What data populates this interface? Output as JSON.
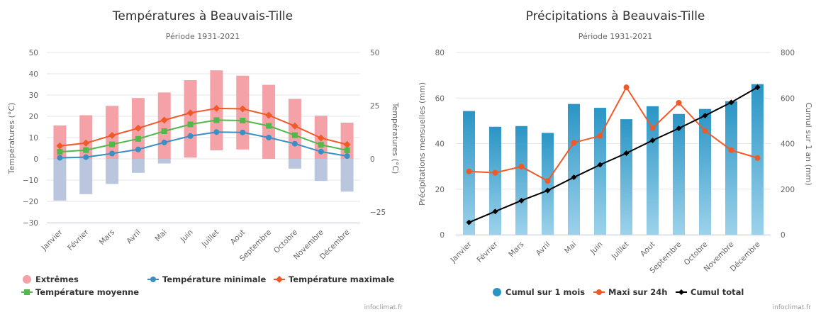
{
  "months": [
    "Janvier",
    "Février",
    "Mars",
    "Avril",
    "Mai",
    "Juin",
    "Juillet",
    "Aout",
    "Septembre",
    "Octobre",
    "Novembre",
    "Décembre"
  ],
  "credit": "infoclimat.fr",
  "colors": {
    "extremes_fill": "#f4a2a8",
    "extremes_low_fill": "#b9c6dd",
    "tmin": "#3a8fc3",
    "tmoy": "#52b84a",
    "tmax": "#f05a28",
    "precip_top": "#2a95c5",
    "precip_bottom": "#9dd2ea",
    "maxi24": "#f05a28",
    "cumul": "#000000"
  },
  "chart_data": [
    {
      "type": "line",
      "title": "Températures à Beauvais-Tille",
      "subtitle": "Période 1931-2021",
      "ylabel": "Températures (°C)",
      "ylabel_right": "Températures (°C)",
      "ylim": [
        -30,
        50
      ],
      "yticks": [
        "50",
        "40",
        "30",
        "20",
        "10",
        "0",
        "−10",
        "−20",
        "−30"
      ],
      "yticks_right": [
        "50",
        "25",
        "0",
        "−25"
      ],
      "categories": [
        "Janvier",
        "Février",
        "Mars",
        "Avril",
        "Mai",
        "Juin",
        "Juillet",
        "Aout",
        "Septembre",
        "Octobre",
        "Novembre",
        "Décembre"
      ],
      "extremes": {
        "name": "Extrêmes",
        "high": [
          15.7,
          20.5,
          24.9,
          28.6,
          31.2,
          37.0,
          41.6,
          39.1,
          34.8,
          28.2,
          20.3,
          17.0
        ],
        "low": [
          -19.6,
          -16.6,
          -11.8,
          -6.6,
          -2.2,
          0.6,
          4.0,
          4.4,
          0.0,
          -4.6,
          -10.4,
          -15.4
        ]
      },
      "series": [
        {
          "name": "Température minimale",
          "values": [
            0.5,
            0.8,
            2.5,
            4.4,
            7.7,
            10.7,
            12.6,
            12.4,
            10.0,
            7.1,
            3.4,
            1.3
          ]
        },
        {
          "name": "Température moyenne",
          "values": [
            3.3,
            4.1,
            6.8,
            9.4,
            13.0,
            16.2,
            18.2,
            18.0,
            15.5,
            11.1,
            6.6,
            4.0
          ]
        },
        {
          "name": "Température maximale",
          "values": [
            6.1,
            7.4,
            11.0,
            14.4,
            18.2,
            21.6,
            23.7,
            23.5,
            20.5,
            15.4,
            9.8,
            6.7
          ]
        }
      ],
      "legend": [
        "Extrêmes",
        "Température minimale",
        "Température maximale",
        "Température moyenne"
      ]
    },
    {
      "type": "bar",
      "title": "Précipitations à Beauvais-Tille",
      "subtitle": "Période 1931-2021",
      "ylabel": "Précipitations mensuelles (mm)",
      "ylabel_right": "Cumul sur 1 an (mm)",
      "ylim": [
        0,
        80
      ],
      "ylim_right": [
        0,
        800
      ],
      "yticks": [
        "80",
        "60",
        "40",
        "20",
        "0"
      ],
      "yticks_right": [
        "800",
        "600",
        "400",
        "200",
        "0"
      ],
      "categories": [
        "Janvier",
        "Février",
        "Mars",
        "Avril",
        "Mai",
        "Juin",
        "Juillet",
        "Aout",
        "Septembre",
        "Octobre",
        "Novembre",
        "Décembre"
      ],
      "series": [
        {
          "name": "Cumul sur 1 mois",
          "values": [
            54.3,
            47.4,
            47.7,
            44.7,
            57.4,
            55.7,
            50.7,
            56.4,
            53.0,
            55.2,
            58.6,
            66.1
          ]
        },
        {
          "name": "Maxi sur 24h",
          "values": [
            27.8,
            27.2,
            29.9,
            23.6,
            40.4,
            43.4,
            64.7,
            46.8,
            57.9,
            45.6,
            37.1,
            33.7
          ]
        },
        {
          "name": "Cumul total",
          "axis": "right",
          "values": [
            54,
            102,
            150,
            194,
            252,
            307,
            358,
            414,
            467,
            523,
            581,
            647
          ]
        }
      ],
      "legend": [
        "Cumul sur 1 mois",
        "Maxi sur 24h",
        "Cumul total"
      ]
    }
  ]
}
